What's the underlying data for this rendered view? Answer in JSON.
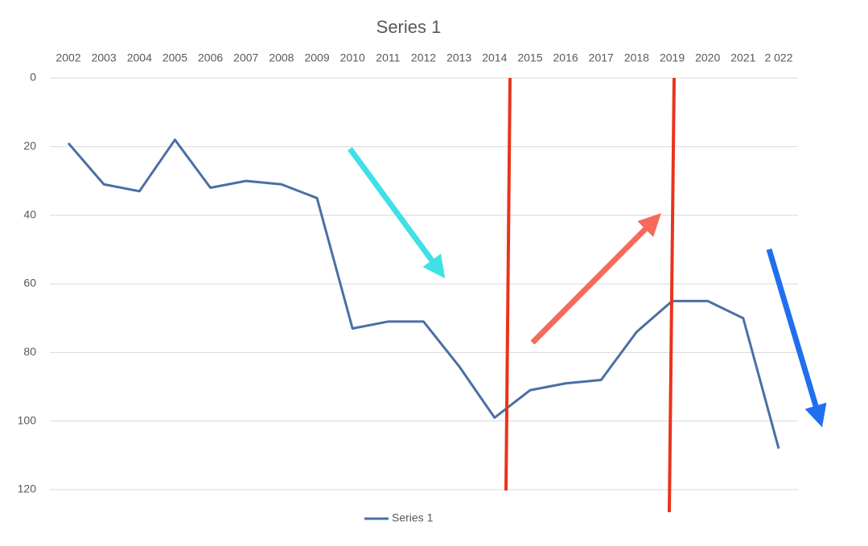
{
  "chart_data": {
    "type": "line",
    "title": "Series 1",
    "categories": [
      "2002",
      "2003",
      "2004",
      "2005",
      "2006",
      "2007",
      "2008",
      "2009",
      "2010",
      "2011",
      "2012",
      "2013",
      "2014",
      "2015",
      "2016",
      "2017",
      "2018",
      "2019",
      "2020",
      "2021",
      "2 022"
    ],
    "series": [
      {
        "name": "Series 1",
        "color": "#4a6fa5",
        "values": [
          19,
          31,
          33,
          18,
          32,
          30,
          31,
          35,
          73,
          71,
          71,
          84,
          99,
          91,
          89,
          88,
          74,
          65,
          65,
          70,
          108
        ]
      }
    ],
    "ylim": [
      0,
      120
    ],
    "yticks": [
      0,
      20,
      40,
      60,
      80,
      100,
      120
    ],
    "y_inverted": true,
    "grid": true,
    "legend": "bottom"
  }
}
